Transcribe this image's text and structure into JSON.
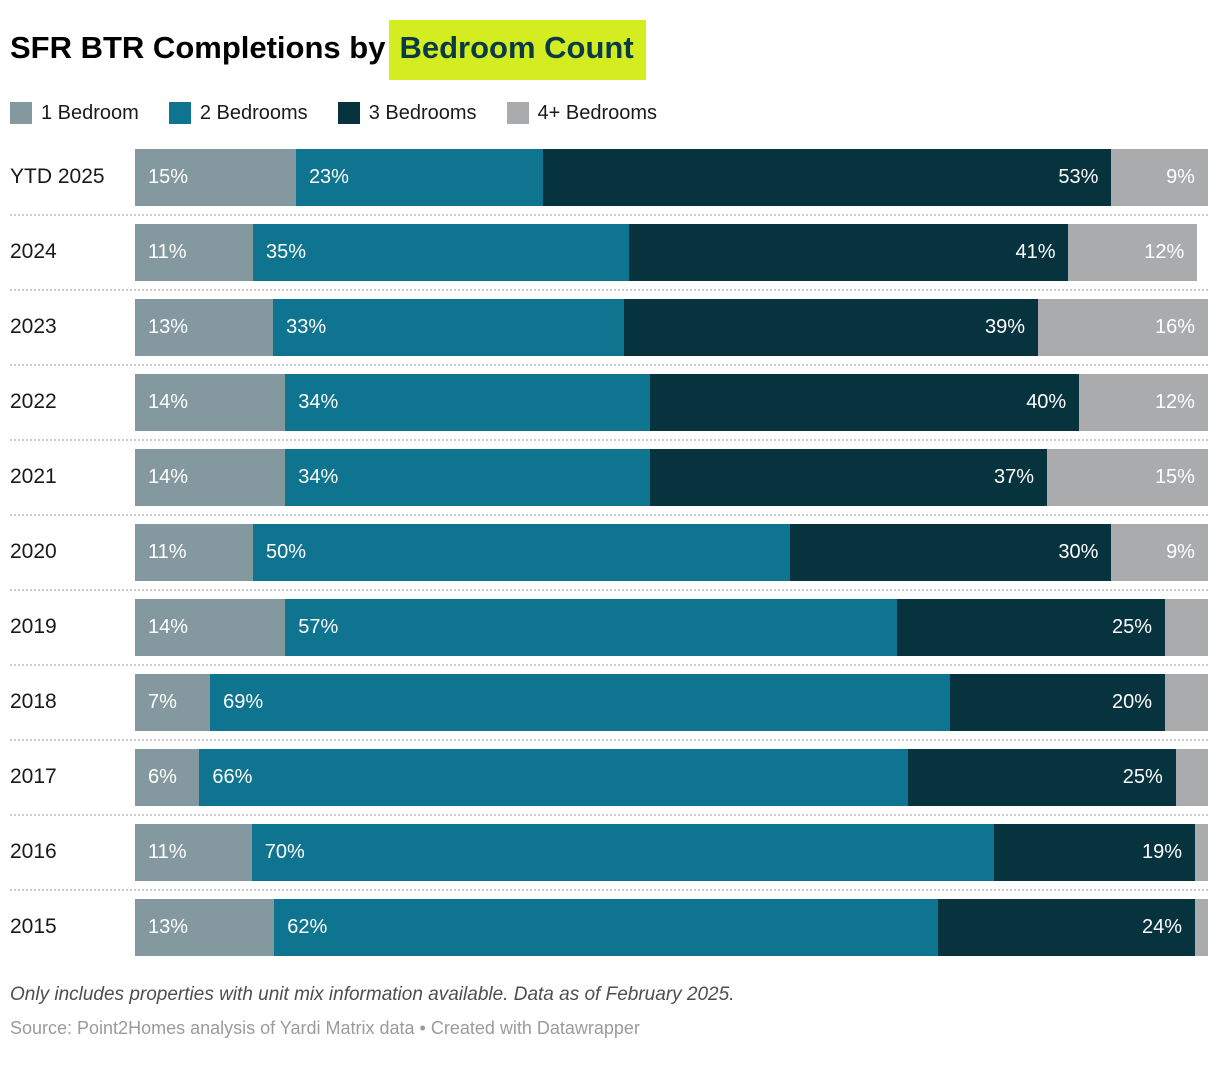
{
  "title": {
    "prefix": "SFR BTR Completions by",
    "highlight": "Bedroom Count",
    "highlight_bg": "#D4ED21",
    "highlight_color": "#0B3A47"
  },
  "footnote": "Only includes properties with unit mix information available. Data as of February 2025.",
  "source": "Source: Point2Homes analysis of Yardi Matrix data • Created with Datawrapper",
  "chart_data": {
    "type": "bar",
    "stacked": true,
    "orientation": "horizontal",
    "value_unit": "%",
    "x_range": [
      0,
      100
    ],
    "grid": false,
    "legend_position": "top",
    "categories": [
      "YTD 2025",
      "2024",
      "2023",
      "2022",
      "2021",
      "2020",
      "2019",
      "2018",
      "2017",
      "2016",
      "2015"
    ],
    "series": [
      {
        "name": "1 Bedroom",
        "color": "#84989F",
        "values": [
          15,
          11,
          13,
          14,
          14,
          11,
          14,
          7,
          6,
          11,
          13
        ],
        "labels": [
          "15%",
          "11%",
          "13%",
          "14%",
          "14%",
          "11%",
          "14%",
          "7%",
          "6%",
          "11%",
          "13%"
        ]
      },
      {
        "name": "2 Bedrooms",
        "color": "#0F7490",
        "values": [
          23,
          35,
          33,
          34,
          34,
          50,
          57,
          69,
          66,
          70,
          62
        ],
        "labels": [
          "23%",
          "35%",
          "33%",
          "34%",
          "34%",
          "50%",
          "57%",
          "69%",
          "66%",
          "70%",
          "62%"
        ]
      },
      {
        "name": "3 Bedrooms",
        "color": "#07333F",
        "values": [
          53,
          41,
          39,
          40,
          37,
          30,
          25,
          20,
          25,
          19,
          24
        ],
        "labels": [
          "53%",
          "41%",
          "39%",
          "40%",
          "37%",
          "30%",
          "25%",
          "20%",
          "25%",
          "19%",
          "24%"
        ]
      },
      {
        "name": "4+ Bedrooms",
        "color": "#AAABAD",
        "values": [
          9,
          12,
          16,
          12,
          15,
          9,
          4,
          4,
          3,
          0,
          1
        ],
        "labels": [
          "9%",
          "12%",
          "16%",
          "12%",
          "15%",
          "9%",
          "",
          "",
          "",
          "",
          ""
        ]
      }
    ],
    "data_labels": {
      "format": "{value}%",
      "hidden_below": 6,
      "color": "#ffffff"
    }
  }
}
